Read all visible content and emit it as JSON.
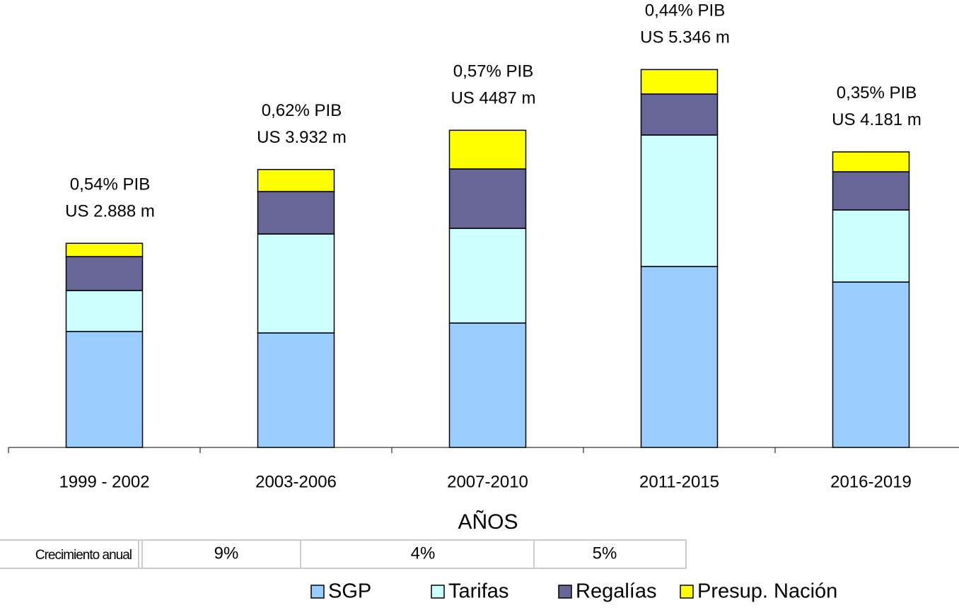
{
  "chart_data": {
    "type": "stacked_bar",
    "x_label": "AÑOS",
    "categories": [
      "1999 - 2002",
      "2003-2006",
      "2007-2010",
      "2011-2015",
      "2016-2019"
    ],
    "series": [
      {
        "name": "SGP",
        "color": "#99ccff",
        "values": [
          1640,
          1620,
          1760,
          2560,
          2340
        ]
      },
      {
        "name": "Tarifas",
        "color": "#ccffff",
        "values": [
          580,
          1400,
          1340,
          1860,
          1020
        ]
      },
      {
        "name": "Regalías",
        "color": "#666699",
        "values": [
          480,
          600,
          840,
          580,
          540
        ]
      },
      {
        "name": "Presup. Nación",
        "color": "#ffff00",
        "values": [
          188,
          312,
          547,
          346,
          281
        ]
      }
    ],
    "annotations": [
      [
        "0,54% PIB",
        "US 2.888 m"
      ],
      [
        "0,62% PIB",
        "US 3.932 m"
      ],
      [
        "0,57% PIB",
        "US 4487 m"
      ],
      [
        "0,44% PIB",
        "US 5.346 m"
      ],
      [
        "0,35% PIB",
        "US 4.181 m"
      ]
    ],
    "ylim": [
      0,
      6000
    ],
    "legend": "bottom"
  },
  "growth_table": {
    "label": "Crecimiento anual",
    "values": [
      "9%",
      "4%",
      "5%"
    ]
  }
}
